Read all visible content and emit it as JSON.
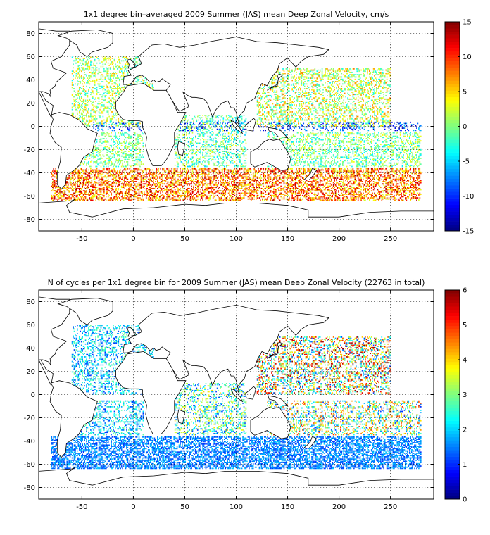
{
  "chart_data": [
    {
      "type": "heatmap",
      "title": "1x1 degree bin–averaged 2009 Summer (JAS) mean Deep Zonal Velocity, cm/s",
      "xlabel": "",
      "ylabel": "",
      "xlim": [
        -92,
        292
      ],
      "ylim": [
        -90,
        90
      ],
      "x_ticks": [
        -50,
        0,
        50,
        100,
        150,
        200,
        250
      ],
      "y_ticks": [
        -80,
        -60,
        -40,
        -20,
        0,
        20,
        40,
        60,
        80
      ],
      "grid": true,
      "colorbar": {
        "range": [
          -15,
          15
        ],
        "ticks": [
          -15,
          -10,
          -5,
          0,
          5,
          10,
          15
        ],
        "colormap": "jet"
      },
      "data_regions": [
        {
          "lon": [
            -80,
            280
          ],
          "lat": [
            -64,
            -36
          ],
          "value_range": [
            2,
            14
          ],
          "density": 0.45
        },
        {
          "lon": [
            -60,
            20
          ],
          "lat": [
            0,
            60
          ],
          "value_range": [
            -4,
            6
          ],
          "density": 0.3
        },
        {
          "lon": [
            -60,
            10
          ],
          "lat": [
            -35,
            -5
          ],
          "value_range": [
            -4,
            4
          ],
          "density": 0.3
        },
        {
          "lon": [
            120,
            250
          ],
          "lat": [
            0,
            50
          ],
          "value_range": [
            -4,
            8
          ],
          "density": 0.32
        },
        {
          "lon": [
            130,
            280
          ],
          "lat": [
            -35,
            -5
          ],
          "value_range": [
            -5,
            4
          ],
          "density": 0.3
        },
        {
          "lon": [
            40,
            110
          ],
          "lat": [
            -35,
            10
          ],
          "value_range": [
            -6,
            4
          ],
          "density": 0.28
        },
        {
          "lon": [
            -40,
            280
          ],
          "lat": [
            -4,
            4
          ],
          "value_range": [
            -14,
            -5
          ],
          "density": 0.18
        }
      ]
    },
    {
      "type": "heatmap",
      "title": "N of cycles per 1x1 degree bin for 2009 Summer (JAS) mean Deep Zonal Velocity (22763 in total)",
      "xlabel": "",
      "ylabel": "",
      "total_cycles": 22763,
      "xlim": [
        -92,
        292
      ],
      "ylim": [
        -90,
        90
      ],
      "x_ticks": [
        -50,
        0,
        50,
        100,
        150,
        200,
        250
      ],
      "y_ticks": [
        -80,
        -60,
        -40,
        -20,
        0,
        20,
        40,
        60,
        80
      ],
      "grid": true,
      "colorbar": {
        "range": [
          0,
          6
        ],
        "ticks": [
          0,
          1,
          2,
          3,
          4,
          5,
          6
        ],
        "colormap": "jet"
      },
      "data_regions": [
        {
          "lon": [
            -80,
            280
          ],
          "lat": [
            -64,
            -36
          ],
          "value_range": [
            1,
            2
          ],
          "density": 0.55
        },
        {
          "lon": [
            -60,
            20
          ],
          "lat": [
            0,
            60
          ],
          "value_range": [
            1,
            3
          ],
          "density": 0.3
        },
        {
          "lon": [
            -60,
            10
          ],
          "lat": [
            -35,
            -5
          ],
          "value_range": [
            1,
            3
          ],
          "density": 0.3
        },
        {
          "lon": [
            120,
            250
          ],
          "lat": [
            0,
            50
          ],
          "value_range": [
            1,
            6
          ],
          "density": 0.35
        },
        {
          "lon": [
            130,
            280
          ],
          "lat": [
            -35,
            -5
          ],
          "value_range": [
            1,
            5
          ],
          "density": 0.3
        },
        {
          "lon": [
            40,
            110
          ],
          "lat": [
            -35,
            10
          ],
          "value_range": [
            1,
            4
          ],
          "density": 0.28
        }
      ]
    }
  ]
}
